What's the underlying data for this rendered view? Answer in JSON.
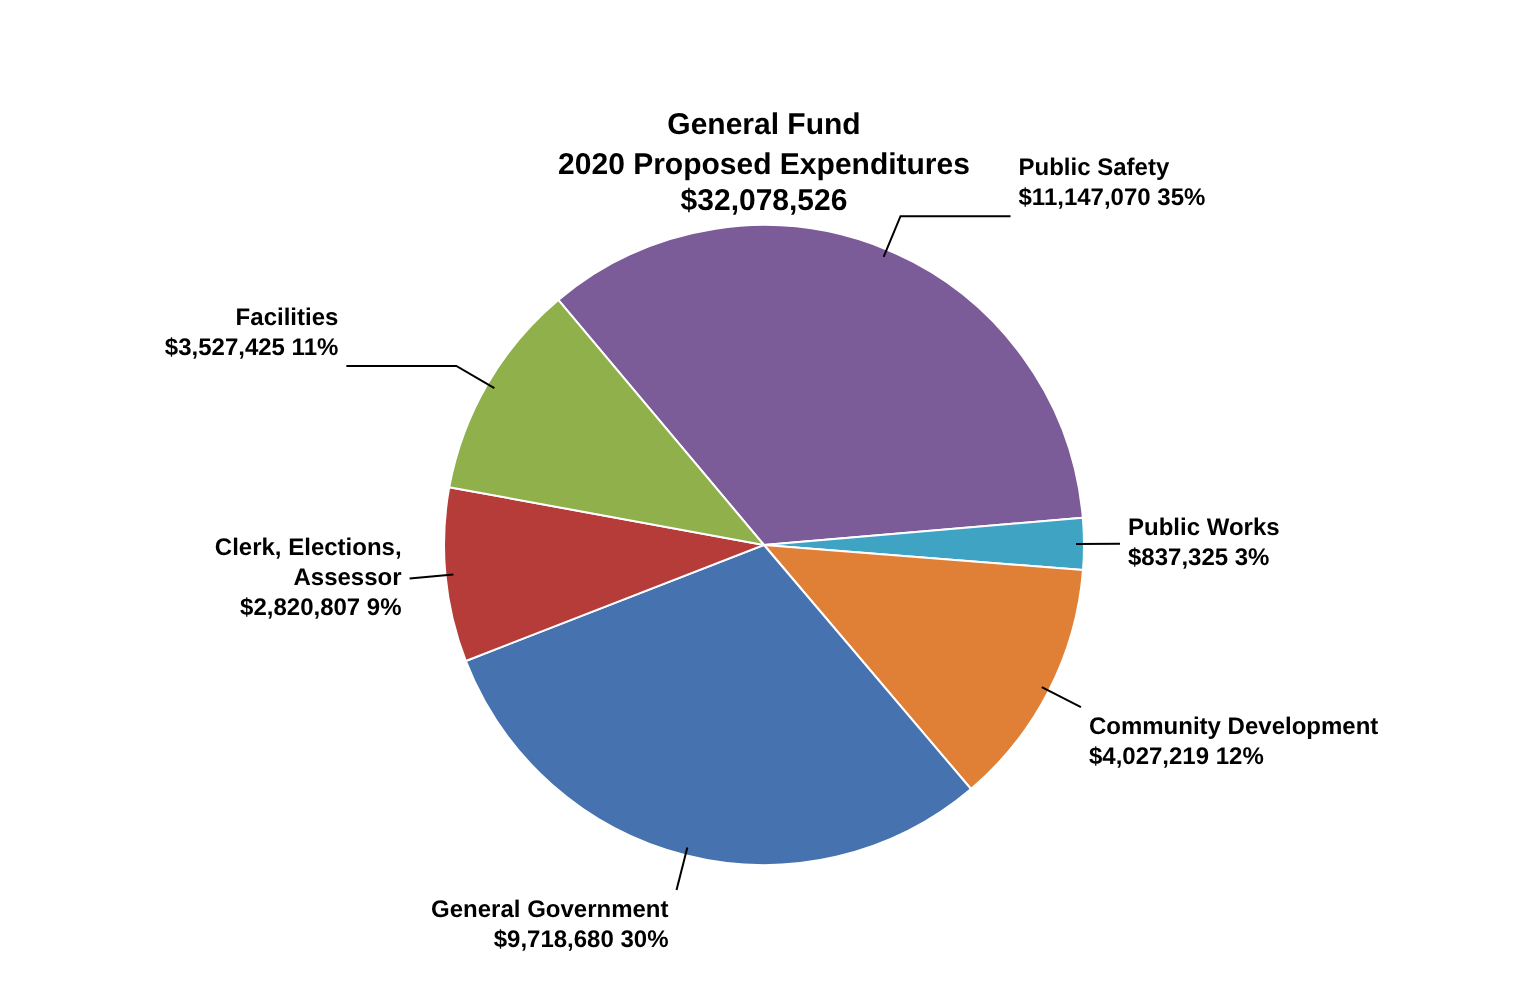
{
  "chart_data": {
    "type": "pie",
    "title": "General Fund",
    "subtitle": "2020 Proposed Expenditures\n$32,078,526",
    "categories": [
      "Public Safety",
      "Public Works",
      "Community Development",
      "General Government",
      "Clerk, Elections, Assessor",
      "Facilities"
    ],
    "values": [
      11147070,
      837325,
      4027219,
      9718680,
      2820807,
      3527425
    ],
    "value_labels": [
      "$11,147,070 35%",
      "$837,325 3%",
      "$4,027,219 12%",
      "$9,718,680 30%",
      "$2,820,807 9%",
      "$3,527,425 11%"
    ],
    "colors": [
      "#7b5c98",
      "#3fa3c4",
      "#e07f36",
      "#4672b0",
      "#b53c38",
      "#8fb04a"
    ],
    "legend": false
  }
}
